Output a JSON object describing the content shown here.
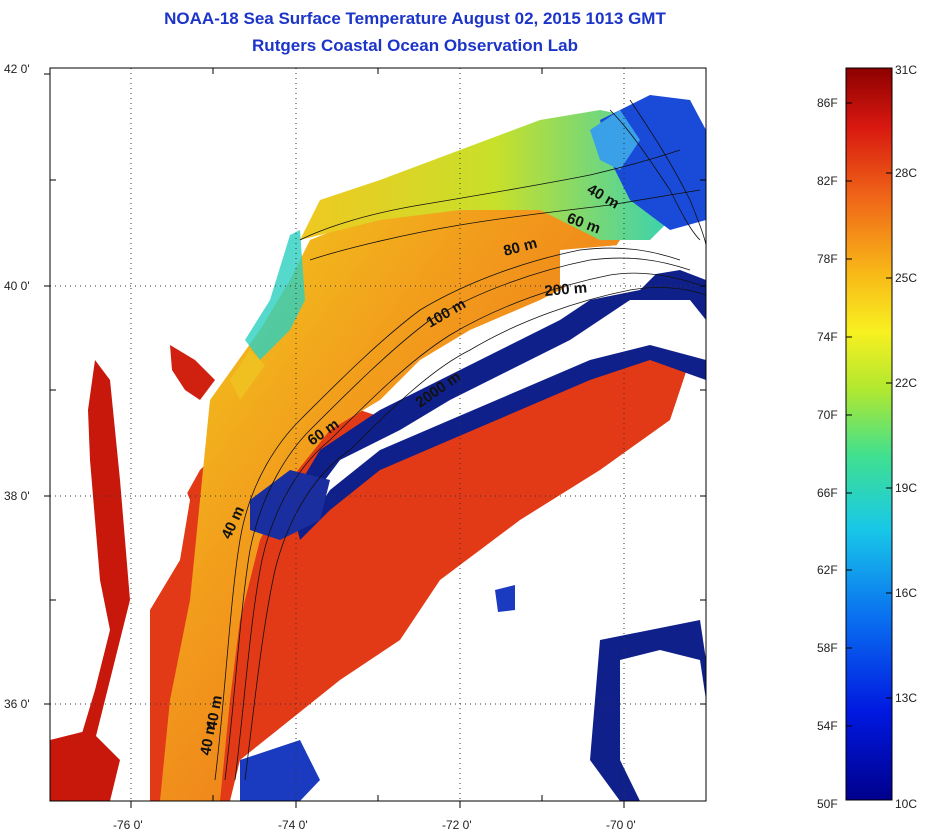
{
  "title": "NOAA-18 Sea Surface Temperature August 02, 2015 1013 GMT",
  "subtitle": "Rutgers Coastal Ocean Observation Lab",
  "map": {
    "lat_ticks": [
      "42 0'",
      "40 0'",
      "38 0'",
      "36 0'"
    ],
    "lon_ticks": [
      "-76 0'",
      "-74 0'",
      "-72 0'",
      "-70 0'"
    ],
    "depth_labels": [
      "40 m",
      "60 m",
      "80 m",
      "200 m",
      "100 m",
      "2000 m",
      "60 m",
      "40 m",
      "40 m",
      "40 m"
    ],
    "colors": {
      "land_bay": "#c8180c",
      "shelf_warm": "#e8501a",
      "offshore": "#e63a14",
      "cool": "#f0c020",
      "cold": "#1a3cd0",
      "cloud": "#ffffff"
    }
  },
  "colorbar": {
    "fahrenheit": [
      "86F",
      "82F",
      "78F",
      "74F",
      "70F",
      "66F",
      "62F",
      "58F",
      "54F",
      "50F"
    ],
    "celsius": [
      "31C",
      "28C",
      "25C",
      "22C",
      "19C",
      "16C",
      "13C",
      "10C"
    ]
  }
}
